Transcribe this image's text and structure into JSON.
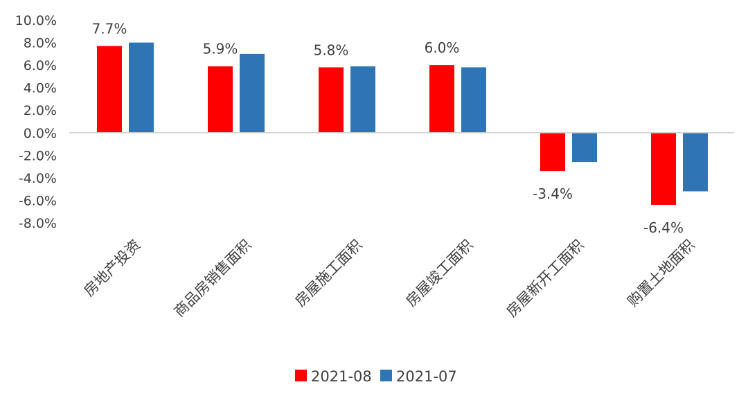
{
  "chart_data": {
    "type": "bar",
    "categories": [
      "房地产投资",
      "商品房销售面积",
      "房屋施工面积",
      "房屋竣工面积",
      "房屋新开工面积",
      "购置土地面积"
    ],
    "series": [
      {
        "name": "2021-08",
        "color": "#ff0000",
        "values": [
          7.7,
          5.9,
          5.8,
          6.0,
          -3.4,
          -6.4
        ]
      },
      {
        "name": "2021-07",
        "color": "#2e75b6",
        "values": [
          8.0,
          7.0,
          5.9,
          5.8,
          -2.6,
          -5.2
        ]
      }
    ],
    "data_labels": [
      "7.7%",
      "5.9%",
      "5.8%",
      "6.0%",
      "-3.4%",
      "-6.4%"
    ],
    "y_ticks": [
      "10.0%",
      "8.0%",
      "6.0%",
      "4.0%",
      "2.0%",
      "0.0%",
      "-2.0%",
      "-4.0%",
      "-6.0%",
      "-8.0%"
    ],
    "ylim": [
      -8,
      10
    ],
    "y_unit": "%",
    "legend_position": "bottom",
    "grid": false,
    "title": "",
    "xlabel": "",
    "ylabel": ""
  }
}
